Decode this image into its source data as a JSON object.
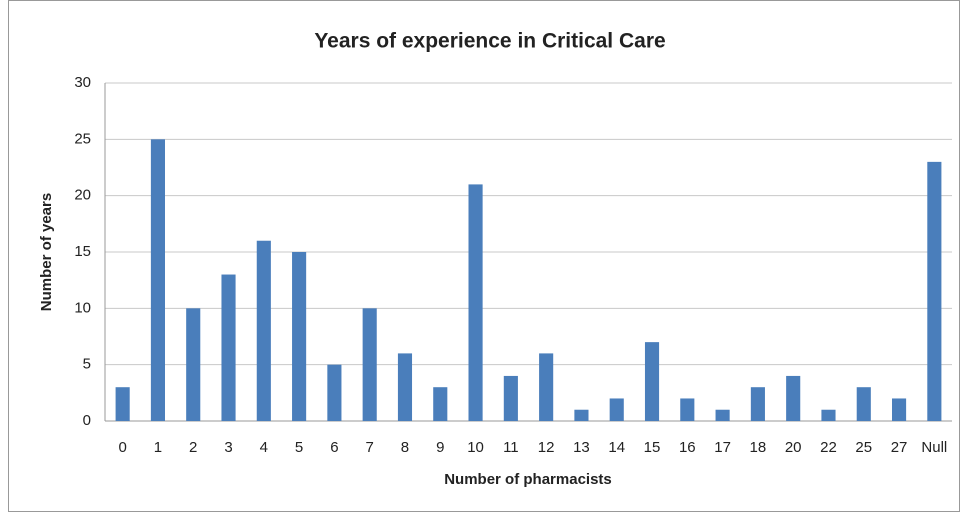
{
  "chart_data": {
    "type": "bar",
    "title": "Years of experience in Critical Care",
    "x_label": "Number of pharmacists",
    "y_label": "Number of years",
    "categories": [
      "0",
      "1",
      "2",
      "3",
      "4",
      "5",
      "6",
      "7",
      "8",
      "9",
      "10",
      "11",
      "12",
      "13",
      "14",
      "15",
      "16",
      "17",
      "18",
      "20",
      "22",
      "25",
      "27",
      "Null"
    ],
    "values": [
      3,
      25,
      10,
      13,
      16,
      15,
      5,
      10,
      6,
      3,
      21,
      4,
      6,
      1,
      2,
      7,
      2,
      1,
      3,
      4,
      1,
      3,
      2,
      23
    ],
    "color": "#4a7ebb",
    "ylim": [
      0,
      30
    ],
    "yticks": [
      0,
      5,
      10,
      15,
      20,
      25,
      30
    ],
    "grid": true
  }
}
